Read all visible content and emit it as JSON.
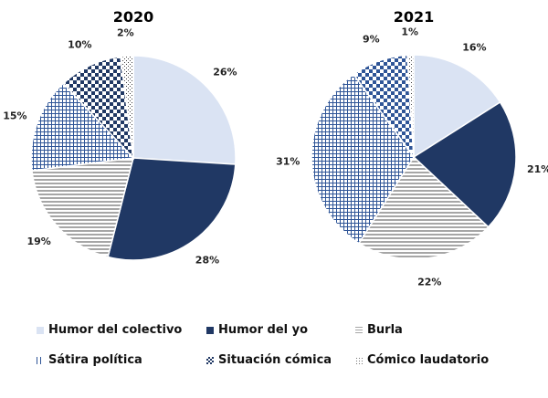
{
  "chart_data": [
    {
      "type": "pie",
      "title": "2020",
      "start": "12 o'clock, clockwise",
      "categories": [
        "Humor del colectivo",
        "Humor del yo",
        "Burla",
        "Sátira política",
        "Situación cómica",
        "Cómico laudatorio"
      ],
      "values": [
        26,
        28,
        19,
        15,
        10,
        2
      ],
      "labels": [
        "26%",
        "28%",
        "19%",
        "15%",
        "10%",
        "2%"
      ]
    },
    {
      "type": "pie",
      "title": "2021",
      "start": "12 o'clock, clockwise",
      "categories": [
        "Humor del colectivo",
        "Humor del yo",
        "Burla",
        "Sátira política",
        "Situación cómica",
        "Cómico laudatorio"
      ],
      "values": [
        16,
        21,
        22,
        31,
        9,
        1
      ],
      "labels": [
        "16%",
        "21%",
        "22%",
        "31%",
        "9%",
        "1%"
      ]
    }
  ],
  "legend": {
    "placement": "bottom",
    "items": [
      {
        "label": "Humor del colectivo",
        "pattern": "solid-light"
      },
      {
        "label": "Humor del yo",
        "pattern": "solid-dark"
      },
      {
        "label": "Burla",
        "pattern": "horizontal-stripes"
      },
      {
        "label": "Sátira política",
        "pattern": "grid"
      },
      {
        "label": "Situación cómica",
        "pattern": "checkerboard"
      },
      {
        "label": "Cómico laudatorio",
        "pattern": "dots"
      }
    ]
  },
  "colors": {
    "light": "#dae3f3",
    "dark": "#203864",
    "stripe": "#a6a6a6",
    "grid": "#2f5597",
    "checker_2020": "#203864",
    "checker_2021": "#2f5597",
    "dots": "#404040"
  }
}
